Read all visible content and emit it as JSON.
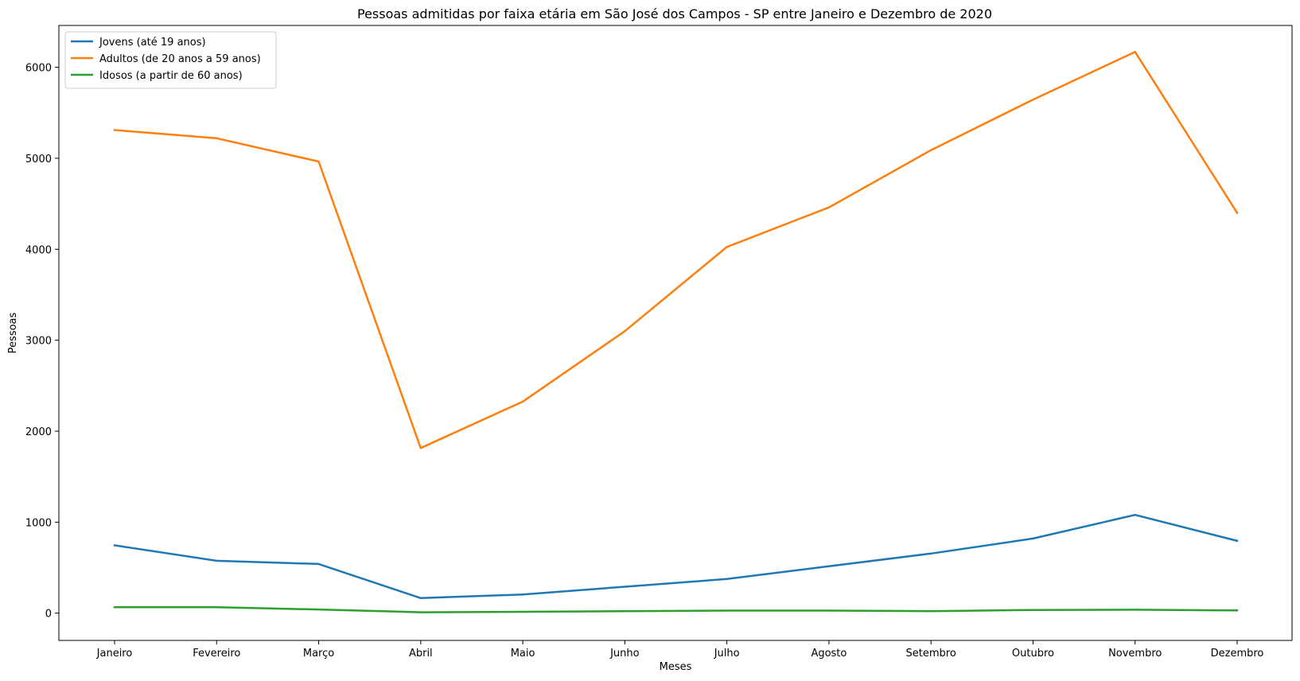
{
  "chart_data": {
    "type": "line",
    "title": "Pessoas admitidas por faixa etária em São José dos Campos - SP entre Janeiro e Dezembro de 2020",
    "xlabel": "Meses",
    "ylabel": "Pessoas",
    "categories": [
      "Janeiro",
      "Fevereiro",
      "Março",
      "Abril",
      "Maio",
      "Junho",
      "Julho",
      "Agosto",
      "Setembro",
      "Outubro",
      "Novembro",
      "Dezembro"
    ],
    "ylim": [
      -300,
      6460
    ],
    "yticks": [
      0,
      1000,
      2000,
      3000,
      4000,
      5000,
      6000
    ],
    "grid": false,
    "legend_position": "top-left",
    "series": [
      {
        "name": "Jovens (até 19 anos)",
        "color": "#1f77b4",
        "values": [
          745,
          575,
          540,
          165,
          205,
          290,
          375,
          515,
          655,
          820,
          1080,
          795
        ]
      },
      {
        "name": "Adultos (de 20 anos a 59 anos)",
        "color": "#ff7f0e",
        "values": [
          5310,
          5220,
          4965,
          1815,
          2325,
          3100,
          4025,
          4460,
          5090,
          5645,
          6170,
          4400
        ]
      },
      {
        "name": "Idosos (a partir de 60 anos)",
        "color": "#2ca02c",
        "values": [
          65,
          65,
          40,
          10,
          15,
          22,
          28,
          28,
          22,
          35,
          38,
          30
        ]
      }
    ]
  }
}
